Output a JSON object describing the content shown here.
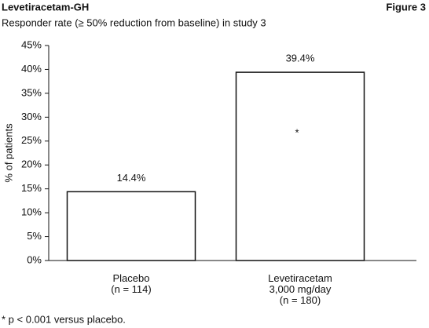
{
  "chart_data": {
    "type": "bar",
    "title": "Levetiracetam-GH",
    "figure_label": "Figure 3",
    "subtitle": "Responder rate (≥ 50% reduction from baseline) in study 3",
    "y_label": "% of patients",
    "categories": [
      "Placebo\n(n = 114)",
      "Levetiracetam\n3,000 mg/day\n(n = 180)"
    ],
    "values": [
      14.4,
      39.4
    ],
    "value_labels": [
      "14.4%",
      "39.4%"
    ],
    "color": "#ffffff",
    "ylim": [
      0,
      45
    ],
    "yticks": [
      {
        "value": 0,
        "label": "0%"
      },
      {
        "value": 5,
        "label": "5%"
      },
      {
        "value": 10,
        "label": "10%"
      },
      {
        "value": 15,
        "label": "15%"
      },
      {
        "value": 20,
        "label": "20%"
      },
      {
        "value": 25,
        "label": "25%"
      },
      {
        "value": 30,
        "label": "30%"
      },
      {
        "value": 35,
        "label": "35%"
      },
      {
        "value": 40,
        "label": "40%"
      },
      {
        "value": 45,
        "label": "45%"
      }
    ],
    "grid": false,
    "annotation": "*",
    "footnote": "* p < 0.001 versus placebo."
  }
}
